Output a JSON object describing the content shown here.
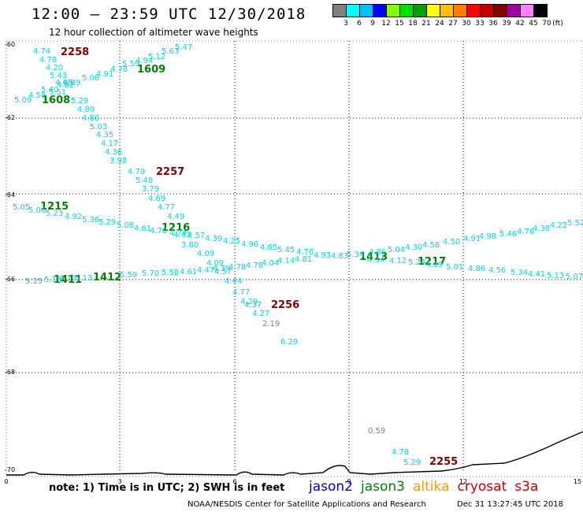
{
  "title": "12:00 – 23:59 UTC 12/30/2018",
  "subtitle": "12 hour collection of altimeter wave heights",
  "colorbar": {
    "colors": [
      "#808080",
      "#00ffff",
      "#00bfff",
      "#0000ff",
      "#7fff00",
      "#00e000",
      "#00a000",
      "#ffff00",
      "#ffc000",
      "#ff8000",
      "#ff0000",
      "#c00000",
      "#800000",
      "#a000a0",
      "#ff80ff",
      "#000000"
    ],
    "labels": [
      "3",
      "6",
      "9",
      "12",
      "15",
      "18",
      "21",
      "24",
      "27",
      "30",
      "33",
      "36",
      "39",
      "42",
      "45",
      "70"
    ],
    "unit": "(ft)"
  },
  "axes": {
    "x_ticks": [
      "0",
      "3",
      "6",
      "9",
      "12",
      "15"
    ],
    "y_ticks": [
      "-60",
      "-62",
      "-64",
      "-66",
      "-68",
      "-70"
    ]
  },
  "colors": {
    "swh_low": "#00d8d8",
    "swh_gray": "#808080",
    "time_green": "#008000",
    "time_red": "#800000",
    "land": "#000000"
  },
  "pass_labels": [
    {
      "t": "2258",
      "c": "red"
    },
    {
      "t": "1609",
      "c": "green"
    },
    {
      "t": "1608",
      "c": "green"
    },
    {
      "t": "2257",
      "c": "red"
    },
    {
      "t": "1215",
      "c": "green"
    },
    {
      "t": "1216",
      "c": "green"
    },
    {
      "t": "1413",
      "c": "green"
    },
    {
      "t": "1217",
      "c": "green"
    },
    {
      "t": "1411",
      "c": "green"
    },
    {
      "t": "1412",
      "c": "green"
    },
    {
      "t": "2256",
      "c": "red"
    },
    {
      "t": "2255",
      "c": "red"
    }
  ],
  "swh_values": [
    {
      "t": "4.74"
    },
    {
      "t": "4.78"
    },
    {
      "t": "4.20"
    },
    {
      "t": "5.43"
    },
    {
      "t": "4.65"
    },
    {
      "t": "4.82"
    },
    {
      "t": "4.89"
    },
    {
      "t": "5.40"
    },
    {
      "t": "5.51"
    },
    {
      "t": "4.58"
    },
    {
      "t": "5.09"
    },
    {
      "t": "5.08"
    },
    {
      "t": "4.91"
    },
    {
      "t": "4.78"
    },
    {
      "t": "5.59"
    },
    {
      "t": "4.94"
    },
    {
      "t": "5.12"
    },
    {
      "t": "5.63"
    },
    {
      "t": "5.47"
    },
    {
      "t": "5.29"
    },
    {
      "t": "4.89"
    },
    {
      "t": "4.86"
    },
    {
      "t": "5.03"
    },
    {
      "t": "4.35"
    },
    {
      "t": "4.17"
    },
    {
      "t": "4.36"
    },
    {
      "t": "3.98"
    },
    {
      "t": "4.79"
    },
    {
      "t": "5.48"
    },
    {
      "t": "3.79"
    },
    {
      "t": "4.69"
    },
    {
      "t": "4.77"
    },
    {
      "t": "4.49"
    },
    {
      "t": "4.43"
    },
    {
      "t": "3.80"
    },
    {
      "t": "4.09"
    },
    {
      "t": "4.09"
    },
    {
      "t": "4.57"
    },
    {
      "t": "4.44"
    },
    {
      "t": "4.77"
    },
    {
      "t": "4.29"
    },
    {
      "t": "4.37"
    },
    {
      "t": "4.27"
    },
    {
      "t": "2.19",
      "c": "gray"
    },
    {
      "t": "6.29"
    },
    {
      "t": "5.05"
    },
    {
      "t": "5.06"
    },
    {
      "t": "5.23"
    },
    {
      "t": "4.92"
    },
    {
      "t": "5.36"
    },
    {
      "t": "5.29"
    },
    {
      "t": "5.08"
    },
    {
      "t": "4.61"
    },
    {
      "t": "4.70"
    },
    {
      "t": "4.74"
    },
    {
      "t": "4.57"
    },
    {
      "t": "4.39"
    },
    {
      "t": "4.25"
    },
    {
      "t": "4.96"
    },
    {
      "t": "4.65"
    },
    {
      "t": "5.45"
    },
    {
      "t": "4.76"
    },
    {
      "t": "4.93"
    },
    {
      "t": "4.83"
    },
    {
      "t": "5.34"
    },
    {
      "t": "4.86"
    },
    {
      "t": "5.04"
    },
    {
      "t": "4.30"
    },
    {
      "t": "4.58"
    },
    {
      "t": "4.50"
    },
    {
      "t": "4.91"
    },
    {
      "t": "4.98"
    },
    {
      "t": "5.46"
    },
    {
      "t": "4.76"
    },
    {
      "t": "4.38"
    },
    {
      "t": "4.22"
    },
    {
      "t": "5.52"
    },
    {
      "t": "5.25"
    },
    {
      "t": "5.13"
    },
    {
      "t": "4.13"
    },
    {
      "t": "5.13"
    },
    {
      "t": "5.59"
    },
    {
      "t": "5.70"
    },
    {
      "t": "5.58"
    },
    {
      "t": "4.61"
    },
    {
      "t": "4.47"
    },
    {
      "t": "4.39"
    },
    {
      "t": "4.78"
    },
    {
      "t": "4.78"
    },
    {
      "t": "4.04"
    },
    {
      "t": "4.14"
    },
    {
      "t": "4.81"
    },
    {
      "t": "4.34"
    },
    {
      "t": "4.12"
    },
    {
      "t": "5.24"
    },
    {
      "t": "4.69"
    },
    {
      "t": "5.01"
    },
    {
      "t": "4.86"
    },
    {
      "t": "4.56"
    },
    {
      "t": "5.34"
    },
    {
      "t": "4.41"
    },
    {
      "t": "5.13"
    },
    {
      "t": "5.07"
    },
    {
      "t": "0.59",
      "c": "gray"
    },
    {
      "t": "4.78"
    },
    {
      "t": "5.29"
    }
  ],
  "note": "note: 1) Time is in UTC; 2) SWH is in feet",
  "satellites": [
    {
      "name": "jason2",
      "color": "#0000cc"
    },
    {
      "name": "jason3",
      "color": "#008000"
    },
    {
      "name": "altika",
      "color": "#ff9900"
    },
    {
      "name": "cryosat",
      "color": "#cc0000"
    },
    {
      "name": "s3a",
      "color": "#cc0000"
    }
  ],
  "footer": "NOAA/NESDIS Center for Satellite Applications and Research",
  "timestamp": "Dec 31 13:27:45 UTC 2018"
}
